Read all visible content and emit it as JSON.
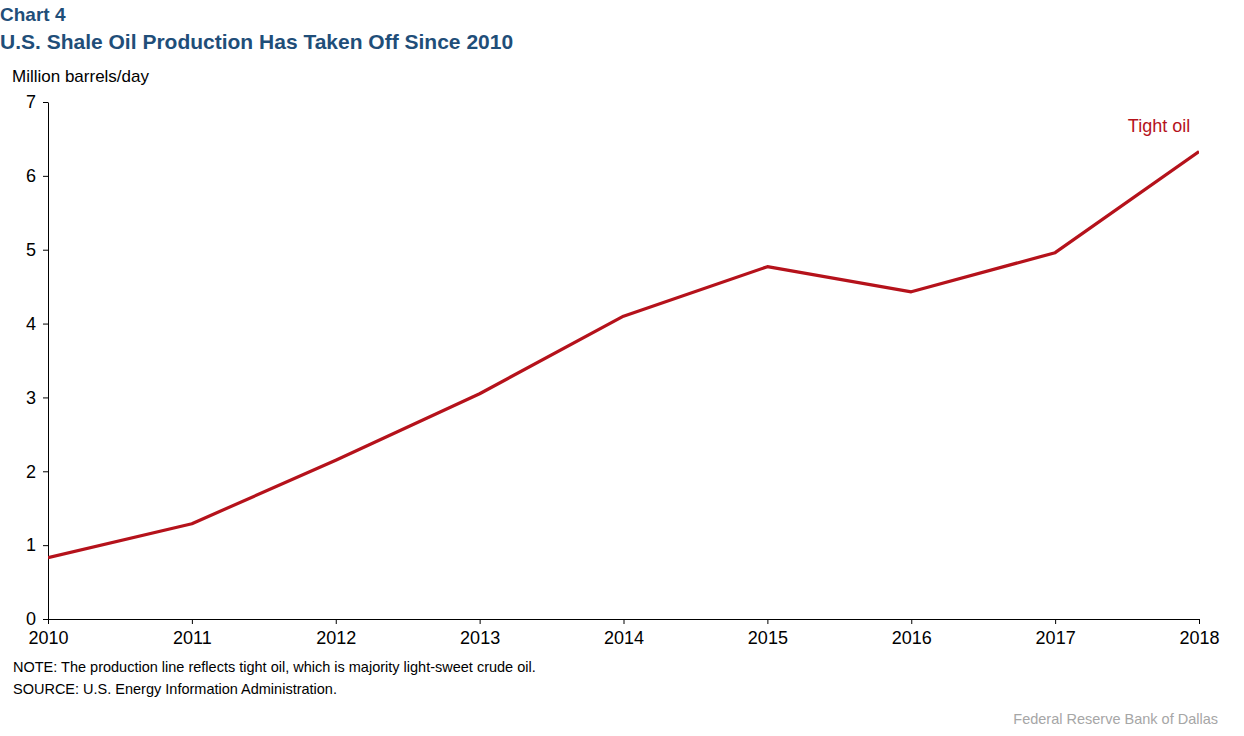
{
  "chart_data": {
    "type": "line",
    "title": "Chart 4",
    "subtitle": "U.S. Shale Oil Production Has Taken Off Since 2010",
    "y_label": "Million barrels/day",
    "note": "NOTE: The production line reflects tight oil, which is majority light-sweet crude oil.",
    "source": "SOURCE: U.S. Energy Information Administration.",
    "credit": "Federal Reserve Bank of Dallas",
    "x": [
      2010,
      2011,
      2012,
      2013,
      2014,
      2015,
      2016,
      2017,
      2018
    ],
    "series": [
      {
        "name": "Tight oil",
        "color": "#b5121b",
        "values": [
          0.83,
          1.29,
          2.15,
          3.05,
          4.1,
          4.77,
          4.43,
          4.96,
          6.33
        ]
      }
    ],
    "xlim": [
      2010,
      2018
    ],
    "xticks": [
      2010,
      2011,
      2012,
      2013,
      2014,
      2015,
      2016,
      2017,
      2018
    ],
    "ylim": [
      0,
      7
    ],
    "yticks": [
      0,
      1,
      2,
      3,
      4,
      5,
      6,
      7
    ],
    "grid": false
  }
}
